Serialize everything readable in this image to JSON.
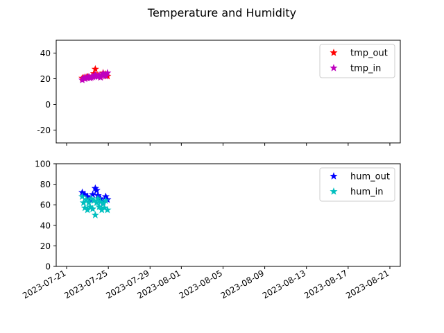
{
  "figure": {
    "title": "Temperature and Humidity"
  },
  "chart_data": [
    {
      "type": "scatter",
      "ylim": [
        -30,
        50
      ],
      "yticks": [
        -20,
        0,
        20,
        40
      ],
      "xlim": [
        "2023-07-20",
        "2023-08-22"
      ],
      "show_x_tick_labels": false,
      "grid": false,
      "legend": "top-right",
      "marker": "star",
      "series": [
        {
          "name": "tmp_out",
          "color": "#ff0000",
          "points": [
            [
              "2023-07-22T12:00",
              20.5
            ],
            [
              "2023-07-22T18:00",
              21.0
            ],
            [
              "2023-07-23T00:00",
              21.5
            ],
            [
              "2023-07-23T06:00",
              20.8
            ],
            [
              "2023-07-23T12:00",
              22.0
            ],
            [
              "2023-07-23T15:00",
              24.0
            ],
            [
              "2023-07-23T18:00",
              27.5
            ],
            [
              "2023-07-24T00:00",
              22.5
            ],
            [
              "2023-07-24T06:00",
              21.5
            ],
            [
              "2023-07-24T12:00",
              24.5
            ],
            [
              "2023-07-24T18:00",
              23.5
            ],
            [
              "2023-07-24T22:00",
              22.0
            ]
          ]
        },
        {
          "name": "tmp_in",
          "color": "#bf00bf",
          "points": [
            [
              "2023-07-22T12:00",
              19.0
            ],
            [
              "2023-07-22T15:00",
              20.5
            ],
            [
              "2023-07-22T18:00",
              20.0
            ],
            [
              "2023-07-22T21:00",
              21.0
            ],
            [
              "2023-07-23T00:00",
              20.5
            ],
            [
              "2023-07-23T03:00",
              21.5
            ],
            [
              "2023-07-23T06:00",
              20.5
            ],
            [
              "2023-07-23T09:00",
              21.0
            ],
            [
              "2023-07-23T12:00",
              21.5
            ],
            [
              "2023-07-23T15:00",
              22.0
            ],
            [
              "2023-07-23T18:00",
              23.0
            ],
            [
              "2023-07-23T21:00",
              22.0
            ],
            [
              "2023-07-24T00:00",
              21.5
            ],
            [
              "2023-07-24T03:00",
              22.5
            ],
            [
              "2023-07-24T06:00",
              21.0
            ],
            [
              "2023-07-24T09:00",
              22.5
            ],
            [
              "2023-07-24T12:00",
              24.0
            ],
            [
              "2023-07-24T15:00",
              23.0
            ],
            [
              "2023-07-24T18:00",
              22.0
            ],
            [
              "2023-07-24T22:00",
              24.5
            ]
          ]
        }
      ]
    },
    {
      "type": "scatter",
      "ylim": [
        0,
        100
      ],
      "yticks": [
        0,
        20,
        40,
        60,
        80,
        100
      ],
      "xlim": [
        "2023-07-20",
        "2023-08-22"
      ],
      "xticks": [
        "2023-07-21",
        "2023-07-25",
        "2023-07-29",
        "2023-08-01",
        "2023-08-05",
        "2023-08-09",
        "2023-08-13",
        "2023-08-17",
        "2023-08-21"
      ],
      "show_x_tick_labels": true,
      "grid": false,
      "legend": "top-right",
      "marker": "star",
      "series": [
        {
          "name": "hum_out",
          "color": "#0000ff",
          "points": [
            [
              "2023-07-22T12:00",
              72.0
            ],
            [
              "2023-07-22T18:00",
              70.0
            ],
            [
              "2023-07-23T00:00",
              68.0
            ],
            [
              "2023-07-23T06:00",
              65.0
            ],
            [
              "2023-07-23T12:00",
              70.0
            ],
            [
              "2023-07-23T18:00",
              76.0
            ],
            [
              "2023-07-23T21:00",
              74.0
            ],
            [
              "2023-07-24T00:00",
              69.0
            ],
            [
              "2023-07-24T06:00",
              66.0
            ],
            [
              "2023-07-24T12:00",
              63.0
            ],
            [
              "2023-07-24T18:00",
              68.0
            ],
            [
              "2023-07-24T22:00",
              65.0
            ]
          ]
        },
        {
          "name": "hum_in",
          "color": "#00bfbf",
          "points": [
            [
              "2023-07-22T12:00",
              68.0
            ],
            [
              "2023-07-22T15:00",
              62.0
            ],
            [
              "2023-07-22T18:00",
              57.0
            ],
            [
              "2023-07-22T21:00",
              65.0
            ],
            [
              "2023-07-23T00:00",
              55.0
            ],
            [
              "2023-07-23T03:00",
              62.0
            ],
            [
              "2023-07-23T06:00",
              58.0
            ],
            [
              "2023-07-23T09:00",
              66.0
            ],
            [
              "2023-07-23T12:00",
              56.0
            ],
            [
              "2023-07-23T15:00",
              64.0
            ],
            [
              "2023-07-23T18:00",
              50.0
            ],
            [
              "2023-07-23T21:00",
              62.0
            ],
            [
              "2023-07-24T00:00",
              66.0
            ],
            [
              "2023-07-24T03:00",
              58.0
            ],
            [
              "2023-07-24T06:00",
              63.0
            ],
            [
              "2023-07-24T09:00",
              55.0
            ],
            [
              "2023-07-24T12:00",
              61.0
            ],
            [
              "2023-07-24T15:00",
              57.0
            ],
            [
              "2023-07-24T18:00",
              64.0
            ],
            [
              "2023-07-24T22:00",
              55.0
            ]
          ]
        }
      ]
    }
  ]
}
